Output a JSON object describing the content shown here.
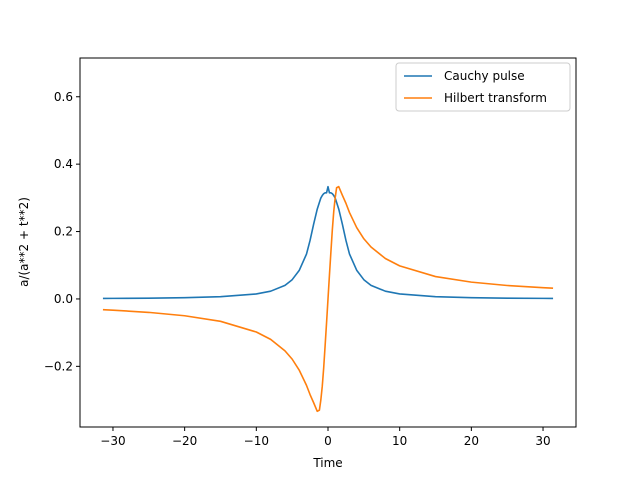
{
  "chart_data": {
    "type": "line",
    "title": "",
    "xlabel": "Time",
    "ylabel": "a/(a**2 + t**2)",
    "xlim": [
      -34.6,
      34.6
    ],
    "ylim": [
      -0.38,
      0.715
    ],
    "xticks": [
      -30,
      -20,
      -10,
      0,
      10,
      20,
      30
    ],
    "xtick_labels": [
      "−30",
      "−20",
      "−10",
      "0",
      "10",
      "20",
      "30"
    ],
    "yticks": [
      -0.2,
      0.0,
      0.2,
      0.4,
      0.6
    ],
    "ytick_labels": [
      "−0.2",
      "0.0",
      "0.2",
      "0.4",
      "0.6"
    ],
    "grid": false,
    "legend_position": "top-right",
    "series": [
      {
        "name": "Cauchy pulse",
        "color": "#1f77b4",
        "x": [
          -31.4,
          -30,
          -25,
          -20,
          -15,
          -10,
          -8,
          -6,
          -5,
          -4,
          -3,
          -2.5,
          -2,
          -1.5,
          -1.2,
          -1,
          -0.8,
          -0.6,
          -0.4,
          -0.2,
          0,
          0.2,
          0.4,
          0.6,
          0.8,
          1,
          1.2,
          1.5,
          2,
          2.5,
          3,
          4,
          5,
          6,
          8,
          10,
          15,
          20,
          25,
          30,
          31.4
        ],
        "values": [
          0.0015,
          0.0017,
          0.0024,
          0.0037,
          0.0067,
          0.0148,
          0.023,
          0.0403,
          0.0571,
          0.0852,
          0.1333,
          0.1739,
          0.2222,
          0.2667,
          0.2867,
          0.2994,
          0.307,
          0.3125,
          0.315,
          0.315,
          0.3333,
          0.315,
          0.315,
          0.3125,
          0.307,
          0.2994,
          0.2867,
          0.2667,
          0.2222,
          0.1739,
          0.1333,
          0.0852,
          0.0571,
          0.0403,
          0.023,
          0.0148,
          0.0067,
          0.0037,
          0.0024,
          0.0017,
          0.0015
        ]
      },
      {
        "name": "Hilbert transform",
        "color": "#ff7f0e",
        "x": [
          -31.4,
          -30,
          -25,
          -20,
          -15,
          -10,
          -8,
          -6,
          -5,
          -4,
          -3,
          -2.5,
          -2,
          -1.5,
          -1.2,
          -1,
          -0.8,
          -0.6,
          -0.4,
          -0.2,
          0,
          0.2,
          0.4,
          0.6,
          0.8,
          1,
          1.2,
          1.5,
          2,
          2.5,
          3,
          4,
          5,
          6,
          8,
          10,
          15,
          20,
          25,
          30,
          31.4
        ],
        "values": [
          -0.0318,
          -0.0333,
          -0.0399,
          -0.0499,
          -0.0664,
          -0.0981,
          -0.12,
          -0.1541,
          -0.1786,
          -0.2119,
          -0.2564,
          -0.284,
          -0.308,
          -0.3333,
          -0.33,
          -0.3,
          -0.259,
          -0.204,
          -0.138,
          -0.07,
          0.0,
          0.07,
          0.138,
          0.204,
          0.259,
          0.3,
          0.33,
          0.3333,
          0.308,
          0.284,
          0.2564,
          0.2119,
          0.1786,
          0.1541,
          0.12,
          0.0981,
          0.0664,
          0.0499,
          0.0399,
          0.0333,
          0.0318
        ]
      }
    ]
  }
}
